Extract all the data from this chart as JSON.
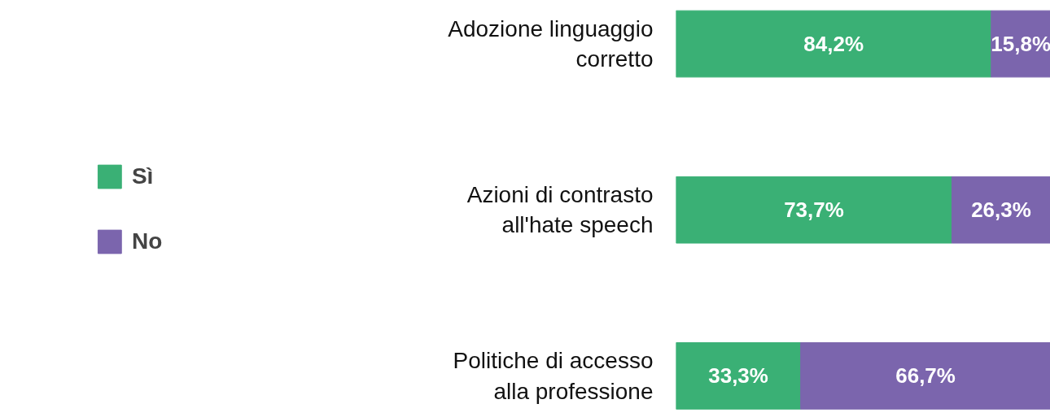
{
  "chart_data": {
    "type": "bar",
    "orientation": "horizontal",
    "stacked": true,
    "categories": [
      "Adozione linguaggio\ncorretto",
      "Azioni di contrasto\nall'hate speech",
      "Politiche di accesso\nalla professione"
    ],
    "series": [
      {
        "name": "Sì",
        "color": "#3ab075",
        "values": [
          84.2,
          73.7,
          33.3
        ],
        "value_labels": [
          "84,2%",
          "73,7%",
          "33,3%"
        ]
      },
      {
        "name": "No",
        "color": "#7b65ad",
        "values": [
          15.8,
          26.3,
          66.7
        ],
        "value_labels": [
          "15,8%",
          "26,3%",
          "66,7%"
        ]
      }
    ],
    "xlim": [
      0,
      100
    ],
    "tick_labels": "y",
    "grid": false,
    "legend": "left"
  }
}
